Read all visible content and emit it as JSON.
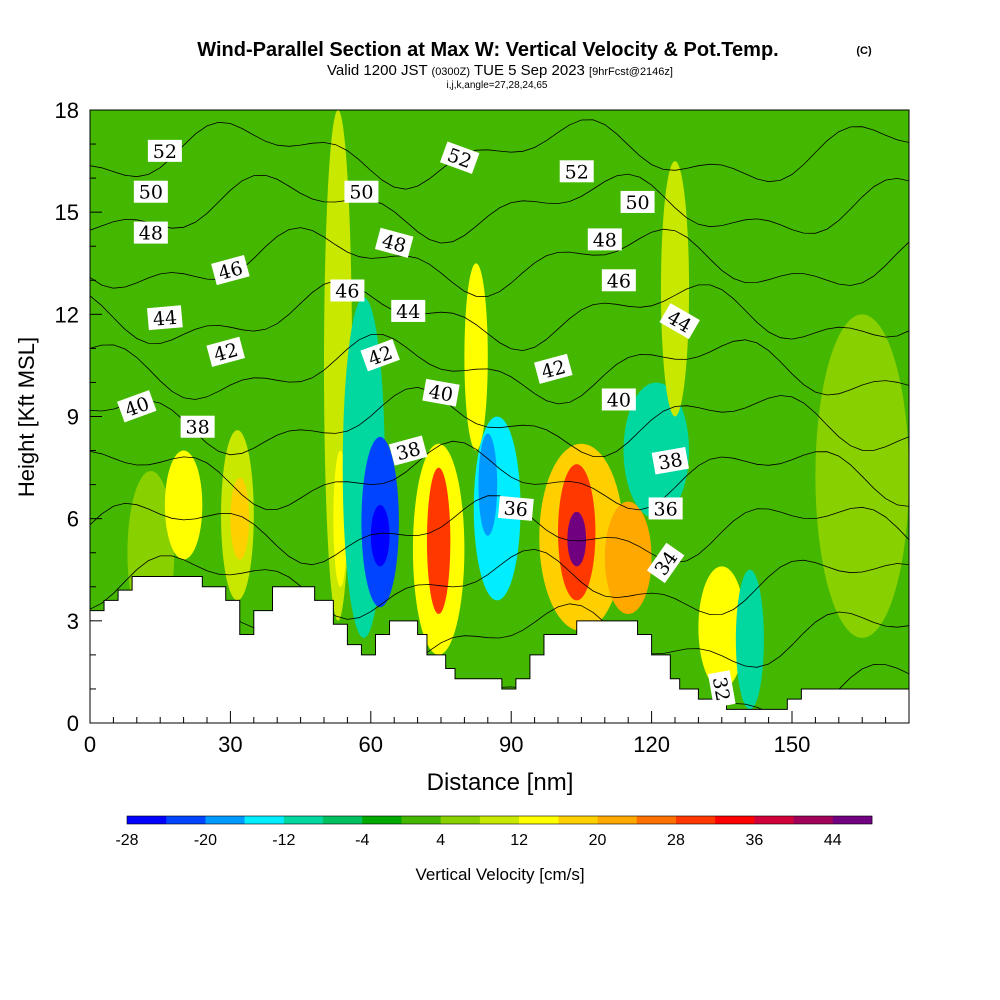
{
  "header": {
    "title": "Wind-Parallel Section at Max W: Vertical Velocity & Pot.Temp.",
    "copyright": "(C)",
    "valid_prefix": "Valid 1200 JST",
    "valid_utc": "(0300Z)",
    "valid_date": "TUE 5 Sep 2023",
    "forecast": "[9hrFcst@2146z]",
    "grid_info": "i,j,k,angle=27,28,24,65"
  },
  "chart_data": {
    "type": "heatmap",
    "xlabel": "Distance [nm]",
    "ylabel": "Height [Kft MSL]",
    "x_ticks": [
      0,
      30,
      60,
      90,
      120,
      150
    ],
    "y_ticks": [
      0,
      3,
      6,
      9,
      12,
      15,
      18
    ],
    "xlim": [
      0,
      175
    ],
    "ylim": [
      0,
      18
    ],
    "colorbar": {
      "label": "Vertical Velocity [cm/s]",
      "ticks": [
        -28,
        -20,
        -12,
        -4,
        4,
        12,
        20,
        28,
        36,
        44
      ],
      "levels": [
        -28,
        -24,
        -20,
        -16,
        -12,
        -8,
        -4,
        0,
        4,
        8,
        12,
        16,
        20,
        24,
        28,
        32,
        36,
        40,
        44,
        48
      ],
      "colors": [
        "#0000ff",
        "#0044ff",
        "#0099ff",
        "#00eeff",
        "#00d8a0",
        "#00c060",
        "#00a800",
        "#44b800",
        "#88d000",
        "#c8e800",
        "#ffff00",
        "#ffd000",
        "#ffa800",
        "#ff7000",
        "#ff3800",
        "#ff0000",
        "#d0003a",
        "#a00058",
        "#700080"
      ]
    },
    "background_w": 0,
    "vertical_velocity_cells": [
      {
        "x": [
          8,
          18
        ],
        "y": [
          2.6,
          7.4
        ],
        "w": 6
      },
      {
        "x": [
          16,
          24
        ],
        "y": [
          4.8,
          8.0
        ],
        "w": 13
      },
      {
        "x": [
          28,
          35
        ],
        "y": [
          3.6,
          8.6
        ],
        "w": 10
      },
      {
        "x": [
          30,
          34
        ],
        "y": [
          4.8,
          7.2
        ],
        "w": 18
      },
      {
        "x": [
          38,
          48
        ],
        "y": [
          3.5,
          9.0
        ],
        "w": 3
      },
      {
        "x": [
          50,
          56
        ],
        "y": [
          3.0,
          18.0
        ],
        "w": 8
      },
      {
        "x": [
          52,
          55
        ],
        "y": [
          4.0,
          8.0
        ],
        "w": 14
      },
      {
        "x": [
          54,
          63
        ],
        "y": [
          2.5,
          12.5
        ],
        "w": -12
      },
      {
        "x": [
          58,
          66
        ],
        "y": [
          3.4,
          8.4
        ],
        "w": -24
      },
      {
        "x": [
          60,
          64
        ],
        "y": [
          4.6,
          6.4
        ],
        "w": -30
      },
      {
        "x": [
          69,
          80
        ],
        "y": [
          2.0,
          8.2
        ],
        "w": 14
      },
      {
        "x": [
          72,
          77
        ],
        "y": [
          3.2,
          7.5
        ],
        "w": 30
      },
      {
        "x": [
          80,
          85
        ],
        "y": [
          8.0,
          13.5
        ],
        "w": 12
      },
      {
        "x": [
          82,
          92
        ],
        "y": [
          3.6,
          9.0
        ],
        "w": -14
      },
      {
        "x": [
          83,
          87
        ],
        "y": [
          5.5,
          8.5
        ],
        "w": -20
      },
      {
        "x": [
          96,
          114
        ],
        "y": [
          2.7,
          8.2
        ],
        "w": 18
      },
      {
        "x": [
          100,
          108
        ],
        "y": [
          3.6,
          7.6
        ],
        "w": 30
      },
      {
        "x": [
          102,
          106
        ],
        "y": [
          4.6,
          6.2
        ],
        "w": 44
      },
      {
        "x": [
          110,
          120
        ],
        "y": [
          3.2,
          6.5
        ],
        "w": 22
      },
      {
        "x": [
          114,
          128
        ],
        "y": [
          6.0,
          10.0
        ],
        "w": -12
      },
      {
        "x": [
          122,
          128
        ],
        "y": [
          9.0,
          16.5
        ],
        "w": 10
      },
      {
        "x": [
          130,
          140
        ],
        "y": [
          1.0,
          4.6
        ],
        "w": 14
      },
      {
        "x": [
          138,
          144
        ],
        "y": [
          0.4,
          4.5
        ],
        "w": -12
      },
      {
        "x": [
          155,
          175
        ],
        "y": [
          2.5,
          12.0
        ],
        "w": 6
      }
    ],
    "terrain": [
      [
        0,
        3.3
      ],
      [
        3,
        3.3
      ],
      [
        3,
        3.6
      ],
      [
        6,
        3.6
      ],
      [
        6,
        3.9
      ],
      [
        9,
        3.9
      ],
      [
        9,
        4.3
      ],
      [
        24,
        4.3
      ],
      [
        24,
        4.0
      ],
      [
        29,
        4.0
      ],
      [
        29,
        3.6
      ],
      [
        32,
        3.6
      ],
      [
        32,
        2.6
      ],
      [
        35,
        2.6
      ],
      [
        35,
        3.3
      ],
      [
        39,
        3.3
      ],
      [
        39,
        4.0
      ],
      [
        48,
        4.0
      ],
      [
        48,
        3.6
      ],
      [
        52,
        3.6
      ],
      [
        52,
        2.9
      ],
      [
        55,
        2.9
      ],
      [
        55,
        2.3
      ],
      [
        58,
        2.3
      ],
      [
        58,
        2.0
      ],
      [
        61,
        2.0
      ],
      [
        61,
        2.6
      ],
      [
        64,
        2.6
      ],
      [
        64,
        3.0
      ],
      [
        70,
        3.0
      ],
      [
        70,
        2.6
      ],
      [
        72,
        2.6
      ],
      [
        72,
        2.0
      ],
      [
        76,
        2.0
      ],
      [
        76,
        1.6
      ],
      [
        78,
        1.6
      ],
      [
        78,
        1.3
      ],
      [
        88,
        1.3
      ],
      [
        88,
        1.0
      ],
      [
        91,
        1.0
      ],
      [
        91,
        1.3
      ],
      [
        94,
        1.3
      ],
      [
        94,
        2.0
      ],
      [
        97,
        2.0
      ],
      [
        97,
        2.6
      ],
      [
        104,
        2.6
      ],
      [
        104,
        3.0
      ],
      [
        117,
        3.0
      ],
      [
        117,
        2.6
      ],
      [
        120,
        2.6
      ],
      [
        120,
        2.0
      ],
      [
        124,
        2.0
      ],
      [
        124,
        1.3
      ],
      [
        126,
        1.3
      ],
      [
        126,
        1.0
      ],
      [
        130,
        1.0
      ],
      [
        130,
        0.7
      ],
      [
        136,
        0.7
      ],
      [
        136,
        0.4
      ],
      [
        149,
        0.4
      ],
      [
        149,
        0.7
      ],
      [
        152,
        0.7
      ],
      [
        152,
        1.0
      ],
      [
        175,
        1.0
      ]
    ],
    "theta_contours": [
      {
        "label": "32",
        "label_x": 135,
        "label_y": 1.0,
        "rot": 80
      },
      {
        "label": "34",
        "label_x": 123,
        "label_y": 4.7,
        "rot": -55
      },
      {
        "label": "36",
        "label_x": 91,
        "label_y": 6.3,
        "rot": 5
      },
      {
        "label": "36",
        "label_x": 123,
        "label_y": 6.3,
        "rot": 0
      },
      {
        "label": "38",
        "label_x": 23,
        "label_y": 8.7,
        "rot": 0
      },
      {
        "label": "38",
        "label_x": 68,
        "label_y": 8.0,
        "rot": -15
      },
      {
        "label": "38",
        "label_x": 124,
        "label_y": 7.7,
        "rot": -10
      },
      {
        "label": "40",
        "label_x": 10,
        "label_y": 9.3,
        "rot": -20
      },
      {
        "label": "40",
        "label_x": 75,
        "label_y": 9.7,
        "rot": 10
      },
      {
        "label": "40",
        "label_x": 113,
        "label_y": 9.5,
        "rot": 0
      },
      {
        "label": "42",
        "label_x": 29,
        "label_y": 10.9,
        "rot": -15
      },
      {
        "label": "42",
        "label_x": 62,
        "label_y": 10.8,
        "rot": -20
      },
      {
        "label": "42",
        "label_x": 99,
        "label_y": 10.4,
        "rot": -15
      },
      {
        "label": "44",
        "label_x": 16,
        "label_y": 11.9,
        "rot": -5
      },
      {
        "label": "44",
        "label_x": 68,
        "label_y": 12.1,
        "rot": 0
      },
      {
        "label": "44",
        "label_x": 126,
        "label_y": 11.8,
        "rot": 30
      },
      {
        "label": "46",
        "label_x": 30,
        "label_y": 13.3,
        "rot": -15
      },
      {
        "label": "46",
        "label_x": 55,
        "label_y": 12.7,
        "rot": 0
      },
      {
        "label": "46",
        "label_x": 113,
        "label_y": 13.0,
        "rot": 0
      },
      {
        "label": "48",
        "label_x": 13,
        "label_y": 14.4,
        "rot": 0
      },
      {
        "label": "48",
        "label_x": 65,
        "label_y": 14.1,
        "rot": 15
      },
      {
        "label": "48",
        "label_x": 110,
        "label_y": 14.2,
        "rot": 0
      },
      {
        "label": "50",
        "label_x": 13,
        "label_y": 15.6,
        "rot": 0
      },
      {
        "label": "50",
        "label_x": 58,
        "label_y": 15.6,
        "rot": 0
      },
      {
        "label": "50",
        "label_x": 117,
        "label_y": 15.3,
        "rot": 0
      },
      {
        "label": "52",
        "label_x": 16,
        "label_y": 16.8,
        "rot": 0
      },
      {
        "label": "52",
        "label_x": 79,
        "label_y": 16.6,
        "rot": 20
      },
      {
        "label": "52",
        "label_x": 104,
        "label_y": 16.2,
        "rot": 0
      }
    ]
  }
}
